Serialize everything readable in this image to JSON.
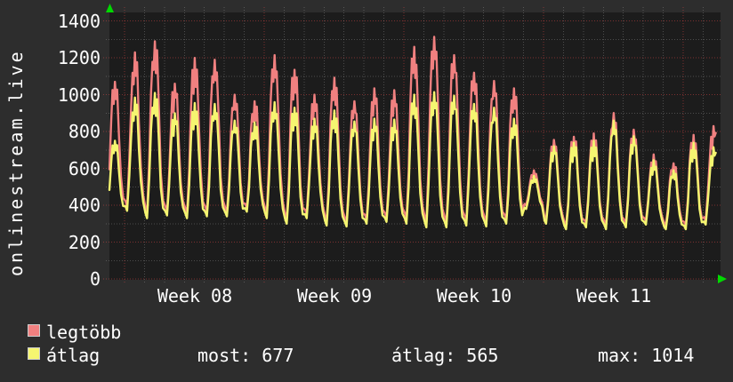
{
  "vertical_label": "onlinestream.live",
  "legend": {
    "items": [
      {
        "label": "legtöbb",
        "color": "#f08080"
      },
      {
        "label": "átlag",
        "color": "#f5f570"
      }
    ]
  },
  "stats": [
    {
      "label": "most",
      "value": 677,
      "text": "most: 677"
    },
    {
      "label": "átlag",
      "value": 565,
      "text": "átlag: 565"
    },
    {
      "label": "max",
      "value": 1014,
      "text": "max: 1014"
    }
  ],
  "colors": {
    "background": "#2d2d2d",
    "plot_background": "#1c1c1c",
    "text": "#ffffff",
    "grid_major_red": "#ff4d4d",
    "grid_minor_gray": "#d9d9d9",
    "axis_arrow_green": "#00d900",
    "legend_swatch_border": "#cccccc"
  },
  "chart_data": {
    "type": "line",
    "title": "",
    "ylabel": "onlinestream.live",
    "ylim": [
      0,
      1400
    ],
    "y_ticks": [
      0,
      200,
      400,
      600,
      800,
      1000,
      1200,
      1400
    ],
    "y_minor_step": 100,
    "x_tick_labels": [
      "Week 08",
      "Week 09",
      "Week 10",
      "Week 11"
    ],
    "x_minor_unit": "day",
    "days_per_week": 7,
    "grid": "dotted, red majors, gray minors",
    "legend_position": "bottom-left",
    "sampling": "one peak/trough cycle per day, 31 days shown (end of week 07 through start of week 12)",
    "series": [
      {
        "name": "legtöbb",
        "color": "#f08080",
        "day_peaks": [
          1070,
          1230,
          1290,
          1060,
          1200,
          1190,
          1000,
          965,
          1215,
          1135,
          1000,
          1093,
          965,
          1035,
          1025,
          1260,
          1314,
          1215,
          1120,
          1075,
          1035,
          590,
          755,
          772,
          790,
          901,
          810,
          676,
          628,
          782,
          830
        ],
        "day_troughs": [
          385,
          390,
          350,
          365,
          350,
          360,
          360,
          385,
          350,
          320,
          350,
          310,
          305,
          320,
          330,
          320,
          300,
          300,
          310,
          305,
          320,
          400,
          320,
          290,
          300,
          290,
          300,
          315,
          290,
          290,
          315
        ]
      },
      {
        "name": "átlag",
        "color": "#f5f570",
        "day_peaks": [
          750,
          985,
          1010,
          900,
          955,
          950,
          860,
          850,
          960,
          930,
          870,
          915,
          855,
          870,
          865,
          1000,
          1014,
          995,
          950,
          930,
          870,
          560,
          720,
          740,
          750,
          860,
          775,
          645,
          590,
          740,
          715
        ],
        "day_troughs": [
          365,
          370,
          330,
          345,
          330,
          340,
          340,
          365,
          330,
          300,
          330,
          290,
          285,
          300,
          310,
          300,
          280,
          280,
          290,
          285,
          300,
          380,
          300,
          270,
          280,
          270,
          280,
          295,
          270,
          270,
          295
        ]
      }
    ]
  }
}
